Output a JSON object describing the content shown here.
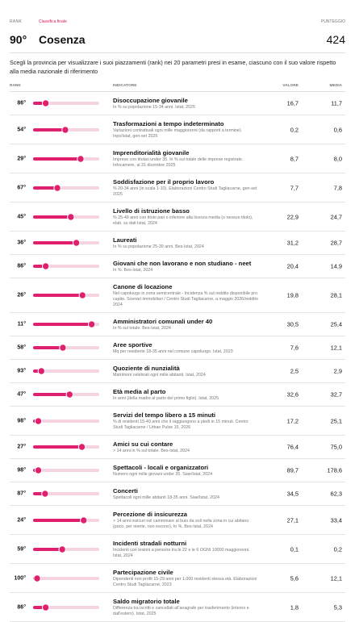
{
  "header": {
    "rank_label": "RANK",
    "tab": "Classifica finale",
    "rank": "90°",
    "province": "Cosenza",
    "score_label": "PUNTEGGIO",
    "score": "424"
  },
  "description": "Scegli la provincia per visualizzare i suoi piazzamenti (rank) nei 20 parametri presi in esame, ciascuno con il suo valore rispetto alla media nazionale di riferimento",
  "table": {
    "columns": [
      "RANK",
      "INDICATORE",
      "VALORE",
      "MEDIA"
    ],
    "rows": [
      {
        "rank": {
          "value": 86,
          "label": "86°"
        },
        "title": "Disoccupazione giovanile",
        "note": "In % su popolazione 15-34 anni. Istat, 2025",
        "value": "16,7",
        "media": "11,7"
      },
      {
        "rank": {
          "value": 54,
          "label": "54°"
        },
        "title": "Trasformazioni a tempo indeterminato",
        "note": "Variazioni contrattuali ogni mille maggiorenni (da rapporti a termine). Inps/Istat, gen-set 2025",
        "value": "0,2",
        "media": "0,6"
      },
      {
        "rank": {
          "value": 29,
          "label": "29°"
        },
        "title": "Imprenditorialità giovanile",
        "note": "Imprese con titolari under 35. In % sul totale delle imprese registrate. Infocamere, al 31 dicembre 2025",
        "value": "8,7",
        "media": "8,0"
      },
      {
        "rank": {
          "value": 67,
          "label": "67°"
        },
        "title": "Soddisfazione per il proprio lavoro",
        "note": "% 20-34 anni (in scala 1-10). Elaborazioni Centro Studi Tagliacarne, gen-set 2025",
        "value": "7,7",
        "media": "7,8"
      },
      {
        "rank": {
          "value": 45,
          "label": "45°"
        },
        "title": "Livello di istruzione basso",
        "note": "% 25-49 anni con titolo pari o inferiore alla licenza media (o nessun titolo), elab. su dati Istat, 2024",
        "value": "22,9",
        "media": "24,7"
      },
      {
        "rank": {
          "value": 36,
          "label": "36°"
        },
        "title": "Laureati",
        "note": "In % su popolazione 25-39 anni. Bes-Istat, 2024",
        "value": "31,2",
        "media": "28,7"
      },
      {
        "rank": {
          "value": 86,
          "label": "86°"
        },
        "title": "Giovani che non lavorano e non studiano - neet",
        "note": "In %. Bes-Istat, 2024",
        "value": "20,4",
        "media": "14,9"
      },
      {
        "rank": {
          "value": 26,
          "label": "26°"
        },
        "title": "Canone di locazione",
        "note": "Nel capoluogo in zona semicentrale - Incidenza % sul reddito disponibile pro capite. Scenari immobiliari / Centro Studi Tagliacarne, a maggio 2026/reddito 2024",
        "value": "19,8",
        "media": "28,1"
      },
      {
        "rank": {
          "value": 11,
          "label": "11°"
        },
        "title": "Amministratori comunali under 40",
        "note": "In % sul totale. Bes-Istat, 2024",
        "value": "30,5",
        "media": "25,4"
      },
      {
        "rank": {
          "value": 58,
          "label": "58°"
        },
        "title": "Aree sportive",
        "note": "Mq per residente 18-35 anni nel comune capoluogo. Istat, 2023",
        "value": "7,6",
        "media": "12,1"
      },
      {
        "rank": {
          "value": 93,
          "label": "93°"
        },
        "title": "Quoziente di nunzialità",
        "note": "Matrimoni celebrati ogni mille abitanti. Istat, 2024",
        "value": "2,5",
        "media": "2,9"
      },
      {
        "rank": {
          "value": 47,
          "label": "47°"
        },
        "title": "Età media al parto",
        "note": "In anni (della madre al parto del primo figlio). Istat, 2025",
        "value": "32,6",
        "media": "32,7"
      },
      {
        "rank": {
          "value": 98,
          "label": "98°"
        },
        "title": "Servizi del tempo libero a 15 minuti",
        "note": "% di residenti 15-49 anni che li raggiungono a piedi in 15 minuti. Centro Studi Tagliacarne / Urban Pulse 15, 2026",
        "value": "17,2",
        "media": "25,1"
      },
      {
        "rank": {
          "value": 27,
          "label": "27°"
        },
        "title": "Amici su cui contare",
        "note": "> 14 anni in % sul totale. Bes-Istat, 2024",
        "value": "76,4",
        "media": "75,0"
      },
      {
        "rank": {
          "value": 98,
          "label": "98°"
        },
        "title": "Spettacoli - locali e organizzatori",
        "note": "Numero ogni mille giovani under 35. Siae/Istat, 2024",
        "value": "89,7",
        "media": "178,6"
      },
      {
        "rank": {
          "value": 87,
          "label": "87°"
        },
        "title": "Concerti",
        "note": "Spettacoli ogni mille abitanti 18-35 anni. Siae/Istat, 2024",
        "value": "34,5",
        "media": "62,3"
      },
      {
        "rank": {
          "value": 24,
          "label": "24°"
        },
        "title": "Percezione di insicurezza",
        "note": "> 14 anni insicuri nel camminare al buio da soli nella zona in cui abitano (poco, per niente, non escono). In %. Bes-Istat, 2024",
        "value": "27,1",
        "media": "33,4"
      },
      {
        "rank": {
          "value": 59,
          "label": "59°"
        },
        "title": "Incidenti stradali notturni",
        "note": "Incidenti con lesioni a persone tra le 22 e le 6 OGNI 10000 maggiorenni. Istat, 2024",
        "value": "0,1",
        "media": "0,2"
      },
      {
        "rank": {
          "value": 100,
          "label": "100°"
        },
        "title": "Partecipazione civile",
        "note": "Dipendenti non profit 15-29 anni per 1.000 residenti stessa età. Elaborazioni Centro Studi Tagliacarne, 2023",
        "value": "5,6",
        "media": "12,1"
      },
      {
        "rank": {
          "value": 86,
          "label": "86°"
        },
        "title": "Saldo migratorio totale",
        "note": "Differenza tra iscritti e cancellati all'anagrafe per trasferimento (interno e dall'estero). Istat, 2025",
        "value": "1,8",
        "media": "5,3"
      }
    ]
  }
}
